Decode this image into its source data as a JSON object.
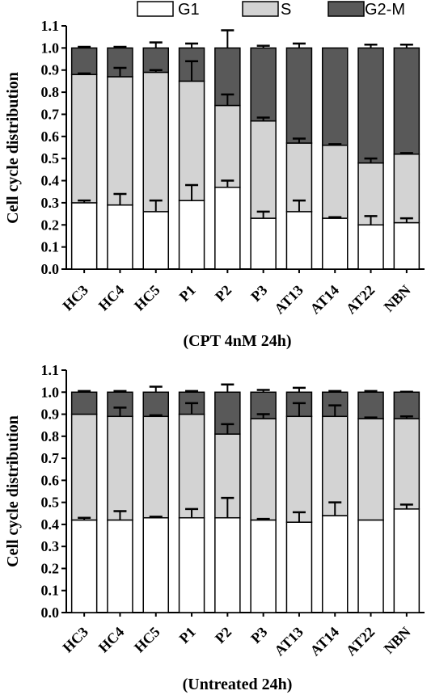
{
  "colors": {
    "G1": "#ffffff",
    "S": "#d3d3d3",
    "G2-M": "#595959",
    "stroke": "#000000"
  },
  "legend": [
    {
      "name": "G1",
      "color": "#ffffff"
    },
    {
      "name": "S",
      "color": "#d3d3d3"
    },
    {
      "name": "G2-M",
      "color": "#595959"
    }
  ],
  "chart_data": [
    {
      "type": "bar",
      "stacked": true,
      "caption": "(CPT 4nM 24h)",
      "ylabel": "Cell cycle distribution",
      "ylim": [
        0,
        1.1
      ],
      "yticks": [
        "0.0",
        "0.1",
        "0.2",
        "0.3",
        "0.4",
        "0.5",
        "0.6",
        "0.7",
        "0.8",
        "0.9",
        "1.0",
        "1.1"
      ],
      "categories": [
        "HC3",
        "HC4",
        "HC5",
        "P1",
        "P2",
        "P3",
        "AT13",
        "AT14",
        "AT22",
        "NBN"
      ],
      "series": [
        {
          "name": "G1",
          "values": [
            0.3,
            0.29,
            0.26,
            0.31,
            0.37,
            0.23,
            0.26,
            0.23,
            0.2,
            0.21
          ],
          "error_tops": [
            0.31,
            0.34,
            0.31,
            0.38,
            0.4,
            0.26,
            0.31,
            0.235,
            0.24,
            0.23
          ]
        },
        {
          "name": "S",
          "values": [
            0.58,
            0.58,
            0.63,
            0.54,
            0.37,
            0.44,
            0.31,
            0.33,
            0.28,
            0.31
          ],
          "error_tops": [
            0.885,
            0.91,
            0.9,
            0.94,
            0.79,
            0.685,
            0.59,
            0.565,
            0.5,
            0.525
          ]
        },
        {
          "name": "G2-M",
          "values": [
            0.12,
            0.13,
            0.11,
            0.15,
            0.26,
            0.33,
            0.43,
            0.44,
            0.52,
            0.48
          ],
          "error_tops": [
            1.005,
            1.005,
            1.025,
            1.02,
            1.08,
            1.01,
            1.02,
            1.002,
            1.015,
            1.015
          ]
        }
      ]
    },
    {
      "type": "bar",
      "stacked": true,
      "caption": "(Untreated 24h)",
      "ylabel": "Cell cycle distribution",
      "ylim": [
        0,
        1.1
      ],
      "yticks": [
        "0.0",
        "0.1",
        "0.2",
        "0.3",
        "0.4",
        "0.5",
        "0.6",
        "0.7",
        "0.8",
        "0.9",
        "1.0",
        "1.1"
      ],
      "categories": [
        "HC3",
        "HC4",
        "HC5",
        "P1",
        "P2",
        "P3",
        "AT13",
        "AT14",
        "AT22",
        "NBN"
      ],
      "series": [
        {
          "name": "G1",
          "values": [
            0.42,
            0.42,
            0.43,
            0.43,
            0.43,
            0.42,
            0.41,
            0.44,
            0.42,
            0.47
          ],
          "error_tops": [
            0.43,
            0.46,
            0.435,
            0.47,
            0.52,
            0.425,
            0.455,
            0.5,
            0.42,
            0.49
          ]
        },
        {
          "name": "S",
          "values": [
            0.48,
            0.47,
            0.46,
            0.47,
            0.38,
            0.46,
            0.48,
            0.45,
            0.46,
            0.41
          ],
          "error_tops": [
            0.9,
            0.93,
            0.895,
            0.95,
            0.855,
            0.9,
            0.95,
            0.94,
            0.885,
            0.89
          ]
        },
        {
          "name": "G2-M",
          "values": [
            0.1,
            0.11,
            0.11,
            0.1,
            0.19,
            0.12,
            0.11,
            0.11,
            0.12,
            0.12
          ],
          "error_tops": [
            1.005,
            1.005,
            1.025,
            1.005,
            1.035,
            1.01,
            1.02,
            1.005,
            1.005,
            1.002
          ]
        }
      ]
    }
  ]
}
